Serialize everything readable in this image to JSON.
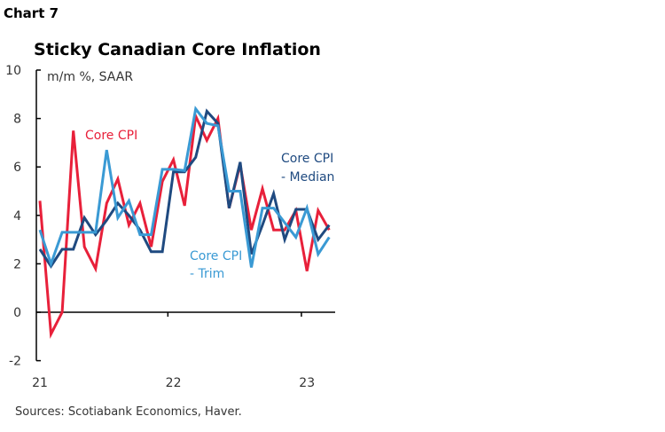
{
  "header": {
    "chart_number": "Chart 7"
  },
  "footer": {
    "sources": "Sources: Scotiabank Economics, Haver."
  },
  "chart_data": {
    "type": "line",
    "title": "Sticky Canadian Core Inflation",
    "unit_label": "m/m %, SAAR",
    "x": [
      "2021-01",
      "2021-02",
      "2021-03",
      "2021-04",
      "2021-05",
      "2021-06",
      "2021-07",
      "2021-08",
      "2021-09",
      "2021-10",
      "2021-11",
      "2021-12",
      "2022-01",
      "2022-02",
      "2022-03",
      "2022-04",
      "2022-05",
      "2022-06",
      "2022-07",
      "2022-08",
      "2022-09",
      "2022-10",
      "2022-11",
      "2022-12",
      "2023-01",
      "2023-02",
      "2023-03"
    ],
    "x_tick_labels": [
      "21",
      "22",
      "23"
    ],
    "y_tick_labels": [
      "10",
      "8",
      "6",
      "4",
      "2",
      "0",
      "-2"
    ],
    "ylim": [
      -2,
      10
    ],
    "grid": false,
    "series": [
      {
        "name": "Core CPI",
        "color": "#e8203a",
        "values": [
          4.6,
          -0.9,
          0.0,
          7.5,
          2.7,
          1.8,
          4.5,
          5.5,
          3.6,
          4.5,
          2.7,
          5.4,
          6.3,
          4.4,
          8.1,
          7.1,
          8.0,
          4.3,
          6.1,
          3.4,
          5.1,
          3.4,
          3.4,
          4.2,
          1.7,
          4.2,
          3.4
        ]
      },
      {
        "name": "Core CPI - Median",
        "label_lines": [
          "Core CPI",
          "- Median"
        ],
        "color": "#1f4a80",
        "values": [
          2.6,
          1.9,
          2.6,
          2.6,
          3.9,
          3.2,
          3.8,
          4.5,
          4.0,
          3.4,
          2.5,
          2.5,
          5.8,
          5.8,
          6.4,
          8.3,
          7.8,
          4.3,
          6.2,
          2.4,
          3.6,
          4.9,
          3.0,
          4.25,
          4.25,
          3.0,
          3.6
        ]
      },
      {
        "name": "Core CPI - Trim",
        "label_lines": [
          "Core CPI",
          "- Trim"
        ],
        "color": "#3a9ad4",
        "values": [
          3.4,
          2.0,
          3.3,
          3.3,
          3.3,
          3.3,
          6.7,
          3.9,
          4.6,
          3.2,
          3.2,
          5.9,
          5.9,
          5.85,
          8.4,
          7.8,
          7.7,
          5.0,
          5.0,
          1.85,
          4.3,
          4.3,
          3.7,
          3.1,
          4.3,
          2.4,
          3.1
        ]
      }
    ]
  }
}
